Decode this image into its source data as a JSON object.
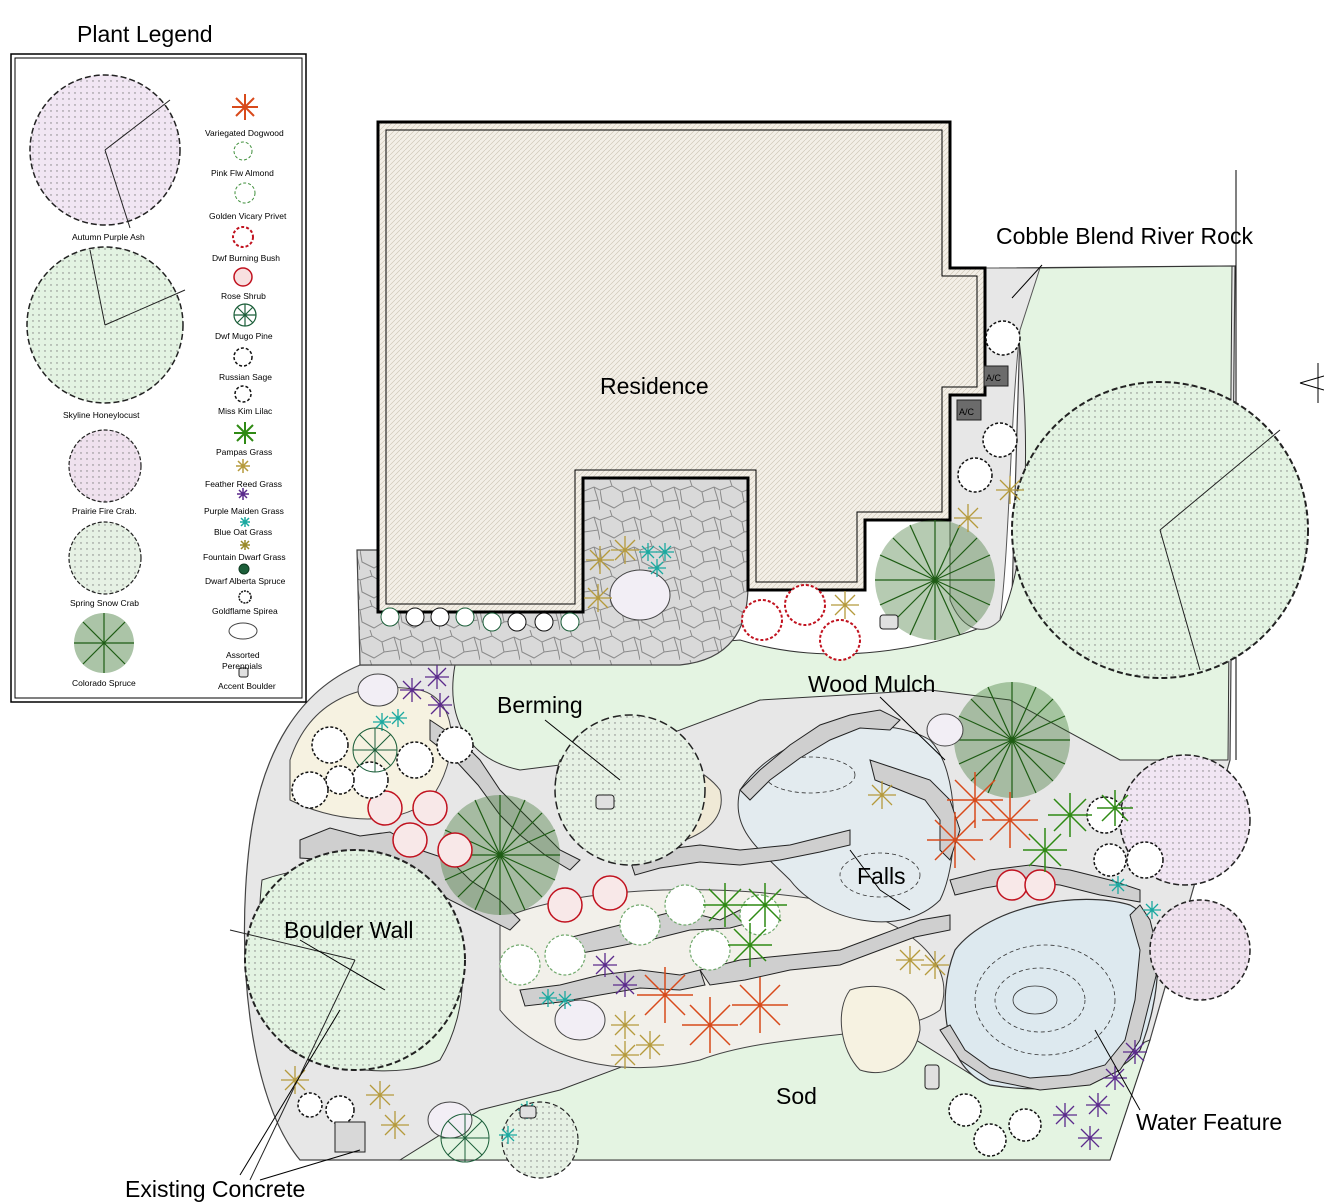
{
  "legend": {
    "title": "Plant Legend",
    "trees": [
      {
        "name": "Autumn Purple Ash",
        "color": "#f1e6f3"
      },
      {
        "name": "Skyline Honeylocust",
        "color": "#e3f3e2"
      },
      {
        "name": "Prairie Fire Crab.",
        "color": "#efe1ee"
      },
      {
        "name": "Spring Snow Crab",
        "color": "#e6f1e4"
      },
      {
        "name": "Colorado Spruce",
        "color": "#1e5c14"
      }
    ],
    "shrubs": [
      {
        "name": "Variegated Dogwood",
        "symbol": "star-icon",
        "color": "#d84a1b"
      },
      {
        "name": "Pink Flw Almond",
        "symbol": "scallop-icon",
        "color": "#3f8f3b"
      },
      {
        "name": "Golden Vicary Privet",
        "symbol": "scallop-icon",
        "color": "#3f8f3b"
      },
      {
        "name": "Dwf Burning Bush",
        "symbol": "scallop-icon",
        "color": "#c1121f"
      },
      {
        "name": "Rose Shrub",
        "symbol": "dotted-circle-icon",
        "color": "#c1121f"
      },
      {
        "name": "Dwf Mugo Pine",
        "symbol": "spoke-icon",
        "color": "#1c5f3a"
      },
      {
        "name": "Russian Sage",
        "symbol": "scallop-icon",
        "color": "#111111"
      },
      {
        "name": "Miss Kim Lilac",
        "symbol": "scallop-icon",
        "color": "#111111"
      },
      {
        "name": "Pampas Grass",
        "symbol": "star-icon",
        "color": "#2f8a14"
      },
      {
        "name": "Feather Reed Grass",
        "symbol": "star-icon",
        "color": "#b59a3c"
      },
      {
        "name": "Purple Maiden Grass",
        "symbol": "star-icon",
        "color": "#5b2a8c"
      },
      {
        "name": "Blue Oat Grass",
        "symbol": "star-icon",
        "color": "#1aa9a0"
      },
      {
        "name": "Fountain Dwarf Grass",
        "symbol": "star-icon",
        "color": "#9a8a2a"
      },
      {
        "name": "Dwarf Alberta Spruce",
        "symbol": "spoke-icon",
        "color": "#1c5f3a"
      },
      {
        "name": "Goldflame Spirea",
        "symbol": "dotted-circle-icon",
        "color": "#111111"
      },
      {
        "name": "Assorted Perennials",
        "symbol": "cloud-icon",
        "color": "#111111"
      },
      {
        "name": "Accent Boulder",
        "symbol": "boulder-icon",
        "color": "#111111"
      }
    ]
  },
  "labels": {
    "residence": "Residence",
    "cobble": "Cobble Blend River Rock",
    "wood_mulch": "Wood Mulch",
    "berming": "Berming",
    "falls": "Falls",
    "boulder_wall": "Boulder Wall",
    "sod": "Sod",
    "water_feature": "Water Feature",
    "existing_concrete": "Existing Concrete",
    "ac_1": "A/C",
    "ac_2": "A/C"
  },
  "colors": {
    "sod": "#e4f4e2",
    "gravel": "#e7e7e7",
    "concrete": "#dcdcdc",
    "mulch": "#f6f2e1",
    "water": "#dde9ef",
    "house": "#f2efea",
    "spruce": "#1e5c14",
    "ac_unit": "#6b6b6b"
  }
}
